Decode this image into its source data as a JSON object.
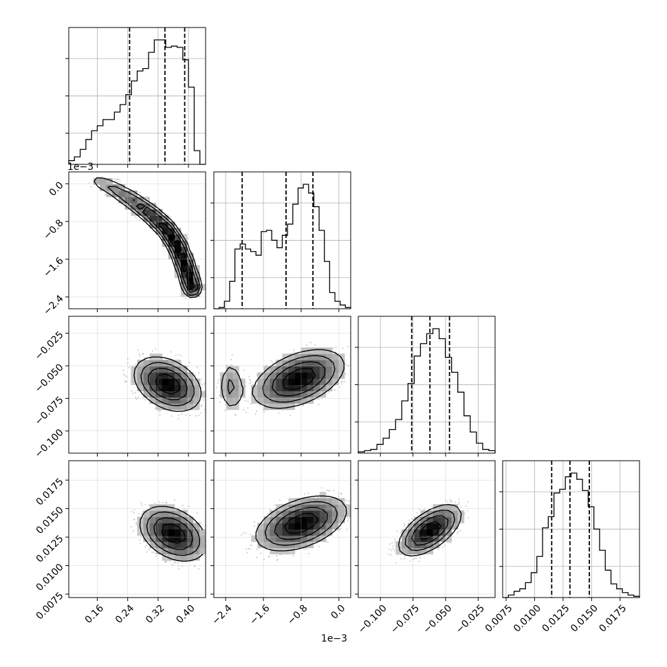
{
  "chart_data": {
    "type": "corner",
    "grid": true,
    "parameters": [
      {
        "index": 0,
        "range": [
          0.085,
          0.445
        ],
        "ticks": [
          0.16,
          0.24,
          0.32,
          0.4
        ],
        "tick_labels": [
          "0.16",
          "0.24",
          "0.32",
          "0.40"
        ],
        "quantiles": [
          0.245,
          0.338,
          0.39
        ]
      },
      {
        "index": 1,
        "range": [
          -2.65,
          0.25
        ],
        "ticks": [
          0.0,
          -0.8,
          -1.6,
          -2.4
        ],
        "tick_labels": [
          "0.0",
          "−0.8",
          "−1.6",
          "−2.4"
        ],
        "offset_label": "1e−3",
        "quantiles": [
          -2.05,
          -1.12,
          -0.55
        ]
      },
      {
        "index": 2,
        "range": [
          -0.117,
          -0.012
        ],
        "ticks": [
          -0.025,
          -0.05,
          -0.075,
          -0.1
        ],
        "tick_labels": [
          "−0.025",
          "−0.050",
          "−0.075",
          "−0.100"
        ],
        "quantiles": [
          -0.076,
          -0.062,
          -0.047
        ]
      },
      {
        "index": 3,
        "range": [
          0.0072,
          0.0192
        ],
        "ticks": [
          0.0075,
          0.01,
          0.0125,
          0.015,
          0.0175
        ],
        "tick_labels": [
          "0.0075",
          "0.0100",
          "0.0125",
          "0.0150",
          "0.0175"
        ],
        "quantiles": [
          0.0115,
          0.0131,
          0.0148
        ]
      }
    ],
    "histograms": [
      {
        "param": 0,
        "counts": [
          0.03,
          0.06,
          0.12,
          0.2,
          0.27,
          0.31,
          0.36,
          0.36,
          0.42,
          0.48,
          0.56,
          0.67,
          0.75,
          0.77,
          0.9,
          1.0,
          1.0,
          0.94,
          0.95,
          0.94,
          0.84,
          0.62,
          0.11,
          0.0
        ]
      },
      {
        "param": 1,
        "counts": [
          0.0,
          0.01,
          0.06,
          0.22,
          0.48,
          0.52,
          0.48,
          0.46,
          0.43,
          0.62,
          0.63,
          0.55,
          0.49,
          0.59,
          0.68,
          0.84,
          0.97,
          1.0,
          0.93,
          0.82,
          0.63,
          0.38,
          0.13,
          0.06,
          0.03,
          0.01
        ]
      },
      {
        "param": 2,
        "counts": [
          0.01,
          0.02,
          0.03,
          0.07,
          0.12,
          0.19,
          0.27,
          0.42,
          0.56,
          0.78,
          0.88,
          0.96,
          1.0,
          0.92,
          0.77,
          0.65,
          0.49,
          0.3,
          0.17,
          0.08,
          0.03,
          0.02
        ]
      },
      {
        "param": 3,
        "counts": [
          0.0,
          0.02,
          0.05,
          0.07,
          0.12,
          0.2,
          0.33,
          0.56,
          0.65,
          0.84,
          0.87,
          0.97,
          1.0,
          0.95,
          0.86,
          0.73,
          0.55,
          0.38,
          0.22,
          0.11,
          0.07,
          0.04,
          0.02,
          0.01
        ]
      }
    ],
    "densities": [
      {
        "x_param": 0,
        "y_param": 1,
        "ridge_x": [
          0.16,
          0.2,
          0.25,
          0.3,
          0.34,
          0.37,
          0.39,
          0.41
        ],
        "ridge_y": [
          0.05,
          -0.1,
          -0.35,
          -0.65,
          -0.95,
          -1.3,
          -1.7,
          -2.2
        ],
        "width": 0.022
      },
      {
        "x_param": 0,
        "y_param": 2,
        "mean": [
          0.345,
          -0.064
        ],
        "sd": [
          0.055,
          0.013
        ],
        "rho": -0.35
      },
      {
        "x_param": 1,
        "y_param": 2,
        "mean": [
          -0.85,
          -0.06
        ],
        "sd": [
          0.6,
          0.014
        ],
        "rho": 0.45,
        "secondary_mean": [
          -2.3,
          -0.065
        ]
      },
      {
        "x_param": 0,
        "y_param": 3,
        "mean": [
          0.36,
          0.0128
        ],
        "sd": [
          0.055,
          0.0015
        ],
        "rho": -0.35
      },
      {
        "x_param": 1,
        "y_param": 3,
        "mean": [
          -0.8,
          0.0137
        ],
        "sd": [
          0.6,
          0.0015
        ],
        "rho": 0.45
      },
      {
        "x_param": 2,
        "y_param": 3,
        "mean": [
          -0.062,
          0.0131
        ],
        "sd": [
          0.015,
          0.0014
        ],
        "rho": 0.6
      }
    ]
  }
}
